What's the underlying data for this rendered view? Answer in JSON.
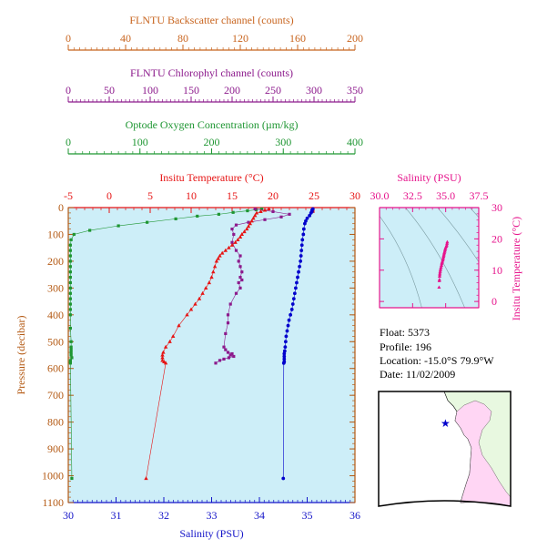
{
  "colors": {
    "backscatter": "#c8641e",
    "chlorophyll": "#8c1a8c",
    "oxygen": "#1e9632",
    "temperature": "#e61414",
    "salinity_axis": "#1414c8",
    "salinity_points": "#0000cc",
    "pressure": "#b45a14",
    "ts": "#e6148c",
    "plot_bg": "#cdeef8",
    "land": "#e8f8e0",
    "sea_pink": "#ffd6f4"
  },
  "info": {
    "float_line": "Float:  5373",
    "profile_line": "Profile:  196",
    "location_line": "Location:  -15.0°S  79.9°W",
    "date_line": "Date:  11/02/2009"
  },
  "chart_data": [
    {
      "type": "line",
      "name": "profile",
      "axes": {
        "backscatter": {
          "label": "FLNTU Backscatter channel (counts)",
          "range": [
            0,
            200
          ],
          "ticks": [
            "0",
            "40",
            "80",
            "120",
            "160",
            "200"
          ]
        },
        "chlorophyll": {
          "label": "FLNTU Chlorophyl channel (counts)",
          "range": [
            0,
            350
          ],
          "ticks": [
            "0",
            "50",
            "100",
            "150",
            "200",
            "250",
            "300",
            "350"
          ]
        },
        "oxygen": {
          "label": "Optode Oxygen Concentration (µm/kg)",
          "range": [
            0,
            400
          ],
          "ticks": [
            "0",
            "100",
            "200",
            "300",
            "400"
          ]
        },
        "temperature": {
          "label": "Insitu Temperature (°C)",
          "range": [
            -5,
            30
          ],
          "ticks": [
            "-5",
            "0",
            "5",
            "10",
            "15",
            "20",
            "25",
            "30"
          ]
        },
        "salinity": {
          "label": "Salinity (PSU)",
          "range": [
            30,
            36
          ],
          "ticks": [
            "30",
            "31",
            "32",
            "33",
            "34",
            "35",
            "36"
          ]
        },
        "pressure": {
          "label": "Pressure (decibar)",
          "range": [
            0,
            1100
          ],
          "ticks": [
            "0",
            "100",
            "200",
            "300",
            "400",
            "500",
            "600",
            "700",
            "800",
            "900",
            "1000",
            "1100"
          ]
        }
      },
      "series": [
        {
          "key": "oxygen",
          "x_axis": "oxygen",
          "marker": "square",
          "x": [
            270,
            262,
            250,
            230,
            210,
            180,
            150,
            110,
            70,
            30,
            8,
            4,
            3,
            3,
            3,
            3,
            3,
            3,
            3,
            3,
            3,
            3,
            3,
            3,
            3,
            3,
            3,
            4,
            4,
            4,
            4,
            4,
            5,
            3,
            3,
            3,
            5
          ],
          "y": [
            5,
            8,
            12,
            18,
            25,
            32,
            42,
            55,
            68,
            85,
            100,
            120,
            140,
            160,
            180,
            200,
            220,
            240,
            260,
            280,
            300,
            320,
            340,
            360,
            380,
            400,
            450,
            500,
            520,
            530,
            540,
            550,
            560,
            570,
            575,
            580,
            1010
          ]
        },
        {
          "key": "chlorophyll",
          "x_axis": "chlorophyll",
          "marker": "square",
          "x": [
            228,
            250,
            270,
            260,
            240,
            220,
            205,
            200,
            202,
            200,
            205,
            210,
            208,
            210,
            212,
            210,
            212,
            208,
            210,
            205,
            198,
            195,
            195,
            192,
            190,
            192,
            195,
            200,
            198,
            202,
            196,
            190,
            185,
            180
          ],
          "y": [
            5,
            15,
            25,
            35,
            45,
            55,
            65,
            80,
            100,
            130,
            160,
            180,
            200,
            220,
            240,
            260,
            270,
            280,
            300,
            320,
            360,
            400,
            430,
            470,
            520,
            530,
            540,
            545,
            550,
            555,
            560,
            565,
            570,
            580
          ]
        },
        {
          "key": "temperature",
          "x_axis": "temperature",
          "marker": "triangle",
          "x": [
            19.5,
            19,
            18.5,
            18,
            17.8,
            17.6,
            17.4,
            17.2,
            17,
            16.8,
            16.5,
            16.2,
            16,
            15.7,
            15.4,
            15,
            14.6,
            14.2,
            13.8,
            13.5,
            13.3,
            13.1,
            12.9,
            12.7,
            12.5,
            12.2,
            11.8,
            11.4,
            11,
            10.5,
            10,
            9.5,
            8.5,
            7.8,
            7.4,
            6.9,
            6.6,
            6.5,
            6.5,
            6.5,
            6.7,
            6.9,
            4.5
          ],
          "y": [
            5,
            10,
            15,
            20,
            30,
            40,
            50,
            60,
            70,
            80,
            90,
            100,
            110,
            120,
            130,
            140,
            150,
            160,
            170,
            180,
            190,
            200,
            220,
            240,
            260,
            280,
            300,
            320,
            340,
            360,
            380,
            400,
            440,
            480,
            500,
            520,
            540,
            550,
            560,
            570,
            575,
            580,
            1010
          ]
        },
        {
          "key": "salinity",
          "x_axis": "salinity",
          "marker": "circle",
          "x": [
            35.12,
            35.1,
            35.1,
            35.08,
            35.05,
            35.0,
            34.97,
            34.95,
            34.93,
            34.92,
            34.9,
            34.89,
            34.88,
            34.87,
            34.86,
            34.84,
            34.82,
            34.8,
            34.78,
            34.76,
            34.74,
            34.72,
            34.7,
            34.68,
            34.65,
            34.62,
            34.6,
            34.58,
            34.56,
            34.55,
            34.54,
            34.53,
            34.52,
            34.52,
            34.52,
            34.52,
            34.51,
            34.5
          ],
          "y": [
            5,
            10,
            15,
            20,
            30,
            40,
            50,
            60,
            80,
            100,
            120,
            140,
            160,
            180,
            200,
            220,
            240,
            260,
            280,
            300,
            320,
            340,
            360,
            380,
            400,
            420,
            440,
            460,
            480,
            500,
            520,
            535,
            545,
            555,
            565,
            575,
            580,
            1010
          ]
        }
      ]
    },
    {
      "type": "scatter",
      "name": "ts-diagram",
      "xlabel": "Salinity (PSU)",
      "ylabel": "Insitu Temperature (°C)",
      "xlim": [
        30,
        37.5
      ],
      "ylim": [
        -2,
        30
      ],
      "xticks": [
        "30.0",
        "32.5",
        "35.0",
        "37.5"
      ],
      "yticks": [
        "0",
        "10",
        "20",
        "30"
      ],
      "x": [
        35.12,
        35.1,
        35.08,
        35.05,
        35.0,
        34.97,
        34.95,
        34.93,
        34.9,
        34.88,
        34.86,
        34.84,
        34.82,
        34.8,
        34.78,
        34.75,
        34.72,
        34.7,
        34.68,
        34.65,
        34.62,
        34.6,
        34.58,
        34.56,
        34.55,
        34.54,
        34.53,
        34.52,
        34.5
      ],
      "y": [
        19,
        18.5,
        18,
        17.6,
        17.2,
        16.8,
        16.4,
        16,
        15.6,
        15.2,
        14.8,
        14.4,
        14,
        13.6,
        13.2,
        12.8,
        12.4,
        12,
        11.5,
        11,
        10.5,
        10,
        9.5,
        9,
        8.5,
        8,
        7,
        6.6,
        4.5
      ]
    }
  ]
}
